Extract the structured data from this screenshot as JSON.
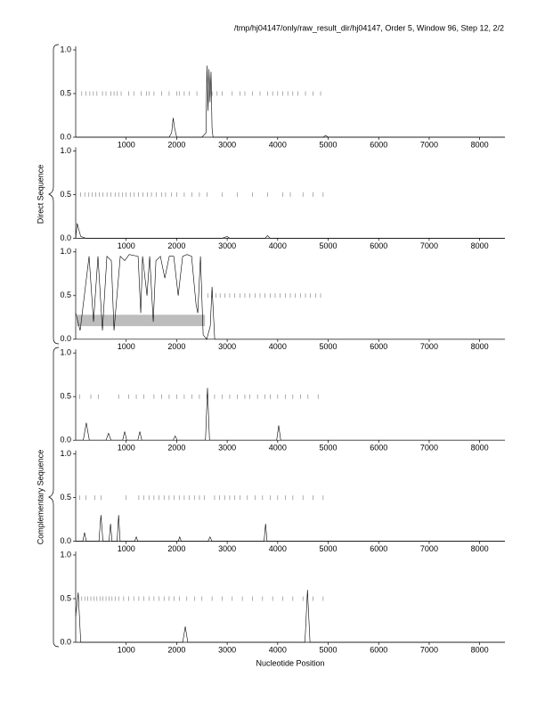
{
  "title": "/tmp/hj04147/only/raw_result_dir/hj04147, Order 5, Window 96, Step 12, 2/2",
  "ylabel_direct": "Direct Sequence",
  "ylabel_complementary": "Complementary Sequence",
  "xlabel": "Nucleotide Position",
  "chart_data": [
    {
      "type": "line",
      "xlim": [
        0,
        8500
      ],
      "ylim": [
        0,
        1
      ],
      "xticks": [
        1000,
        2000,
        3000,
        4000,
        5000,
        6000,
        7000,
        8000
      ],
      "yticks": [
        {
          "value": 0,
          "label": "0.0"
        },
        {
          "value": 0.5,
          "label": "0.5"
        },
        {
          "value": 1,
          "label": "1.0"
        }
      ],
      "x": [
        0,
        1850,
        1900,
        1930,
        1960,
        2000,
        2500,
        2580,
        2600,
        2620,
        2640,
        2660,
        2680,
        2700,
        2720,
        3000,
        4900,
        4950,
        5000,
        8500
      ],
      "values": [
        0,
        0,
        0.05,
        0.22,
        0.1,
        0,
        0,
        0.05,
        0.82,
        0.3,
        0.78,
        0.4,
        0.75,
        0.1,
        0,
        0,
        0,
        0.02,
        0,
        0
      ],
      "marker_level": 0.5,
      "markers": [
        120,
        200,
        280,
        350,
        420,
        530,
        600,
        700,
        760,
        820,
        900,
        1050,
        1150,
        1300,
        1400,
        1450,
        1550,
        1700,
        1850,
        2000,
        2050,
        2150,
        2250,
        2400,
        2700,
        2800,
        2900,
        3100,
        3250,
        3350,
        3500,
        3650,
        3800,
        3900,
        4000,
        4100,
        4200,
        4300,
        4400,
        4550,
        4700,
        4850
      ]
    },
    {
      "type": "line",
      "xlim": [
        0,
        8500
      ],
      "ylim": [
        0,
        1
      ],
      "xticks": [
        1000,
        2000,
        3000,
        4000,
        5000,
        6000,
        7000,
        8000
      ],
      "yticks": [
        {
          "value": 0,
          "label": "0.0"
        },
        {
          "value": 0.5,
          "label": "0.5"
        },
        {
          "value": 1,
          "label": "1.0"
        }
      ],
      "x": [
        0,
        30,
        60,
        100,
        200,
        2900,
        3000,
        3050,
        3100,
        3750,
        3800,
        3850,
        8500
      ],
      "values": [
        0,
        0.17,
        0.1,
        0.02,
        0,
        0,
        0.02,
        0,
        0,
        0,
        0.03,
        0,
        0
      ],
      "marker_level": 0.5,
      "markers": [
        100,
        180,
        260,
        330,
        400,
        470,
        540,
        620,
        700,
        780,
        850,
        930,
        1000,
        1080,
        1160,
        1240,
        1330,
        1420,
        1500,
        1600,
        1700,
        1780,
        1900,
        2000,
        2150,
        2300,
        2450,
        2600,
        2900,
        3200,
        3500,
        3800,
        4100,
        4250,
        4500,
        4700,
        4900
      ]
    },
    {
      "type": "line",
      "xlim": [
        0,
        8500
      ],
      "ylim": [
        0,
        1
      ],
      "xticks": [
        1000,
        2000,
        3000,
        4000,
        5000,
        6000,
        7000,
        8000
      ],
      "yticks": [
        {
          "value": 0,
          "label": "0.0"
        },
        {
          "value": 0.5,
          "label": "0.5"
        },
        {
          "value": 1,
          "label": "1.0"
        }
      ],
      "x": [
        0,
        88,
        265,
        353,
        441,
        530,
        618,
        706,
        759,
        883,
        971,
        1059,
        1236,
        1288,
        1324,
        1412,
        1465,
        1536,
        1589,
        1677,
        1765,
        1853,
        1942,
        2030,
        2118,
        2206,
        2295,
        2383,
        2418,
        2471,
        2524,
        2595,
        2665,
        2700,
        2753,
        8500
      ],
      "values": [
        0.3,
        0.1,
        0.95,
        0.2,
        0.95,
        0.1,
        0.95,
        0.9,
        0.1,
        0.95,
        0.9,
        0.97,
        0.95,
        0.3,
        0.95,
        0.5,
        0.95,
        0.2,
        0.9,
        0.95,
        0.7,
        0.95,
        0.95,
        0.5,
        0.95,
        0.97,
        0.95,
        0.4,
        0.3,
        0.95,
        0.05,
        0,
        0.15,
        0.6,
        0,
        0
      ],
      "regions": [
        {
          "start": 0,
          "end": 2560,
          "low": 0.15,
          "high": 0.28
        }
      ],
      "marker_level": 0.5,
      "markers": [
        2620,
        2700,
        2780,
        2860,
        2950,
        3050,
        3150,
        3250,
        3350,
        3450,
        3550,
        3650,
        3750,
        3850,
        3950,
        4050,
        4150,
        4250,
        4350,
        4450,
        4550,
        4650,
        4750,
        4850
      ]
    },
    {
      "type": "line",
      "xlim": [
        0,
        8500
      ],
      "ylim": [
        0,
        1
      ],
      "xticks": [
        1000,
        2000,
        3000,
        4000,
        5000,
        6000,
        7000,
        8000
      ],
      "yticks": [
        {
          "value": 0,
          "label": "0.0"
        },
        {
          "value": 0.5,
          "label": "0.5"
        },
        {
          "value": 1,
          "label": "1.0"
        }
      ],
      "x": [
        0,
        150,
        210,
        270,
        600,
        650,
        700,
        930,
        970,
        1010,
        1230,
        1270,
        1310,
        1930,
        1970,
        2010,
        2570,
        2610,
        2650,
        3980,
        4020,
        4060,
        8500
      ],
      "values": [
        0,
        0,
        0.2,
        0,
        0,
        0.08,
        0,
        0,
        0.1,
        0,
        0,
        0.1,
        0,
        0,
        0.05,
        0,
        0,
        0.6,
        0,
        0,
        0.17,
        0,
        0
      ],
      "marker_level": 0.5,
      "markers": [
        80,
        300,
        450,
        850,
        1050,
        1200,
        1350,
        1550,
        1700,
        1850,
        2000,
        2150,
        2300,
        2450,
        2600,
        2750,
        2900,
        3050,
        3200,
        3350,
        3450,
        3600,
        3750,
        3850,
        4000,
        4150,
        4300,
        4450,
        4600,
        4800
      ]
    },
    {
      "type": "line",
      "xlim": [
        0,
        8500
      ],
      "ylim": [
        0,
        1
      ],
      "xticks": [
        1000,
        2000,
        3000,
        4000,
        5000,
        6000,
        7000,
        8000
      ],
      "yticks": [
        {
          "value": 0,
          "label": "0.0"
        },
        {
          "value": 0.5,
          "label": "0.5"
        },
        {
          "value": 1,
          "label": "1.0"
        }
      ],
      "x": [
        0,
        140,
        175,
        210,
        460,
        500,
        540,
        660,
        690,
        720,
        820,
        850,
        880,
        1170,
        1200,
        1230,
        2030,
        2060,
        2090,
        2620,
        2660,
        2700,
        3730,
        3760,
        3790,
        8500
      ],
      "values": [
        0,
        0,
        0.1,
        0,
        0,
        0.3,
        0,
        0,
        0.2,
        0,
        0,
        0.3,
        0,
        0,
        0.05,
        0,
        0,
        0.05,
        0,
        0,
        0.05,
        0,
        0,
        0.2,
        0,
        0
      ],
      "marker_level": 0.5,
      "markers": [
        80,
        200,
        380,
        500,
        1000,
        1250,
        1350,
        1450,
        1550,
        1650,
        1750,
        1850,
        1950,
        2050,
        2150,
        2250,
        2350,
        2450,
        2550,
        2750,
        2850,
        2950,
        3050,
        3150,
        3250,
        3400,
        3550,
        3700,
        3850,
        4000,
        4150,
        4300,
        4500,
        4700,
        4900
      ]
    },
    {
      "type": "line",
      "xlim": [
        0,
        8500
      ],
      "ylim": [
        0,
        1
      ],
      "xticks": [
        1000,
        2000,
        3000,
        4000,
        5000,
        6000,
        7000,
        8000
      ],
      "yticks": [
        {
          "value": 0,
          "label": "0.0"
        },
        {
          "value": 0.5,
          "label": "0.5"
        },
        {
          "value": 1,
          "label": "1.0"
        }
      ],
      "x": [
        0,
        50,
        100,
        2120,
        2170,
        2220,
        4540,
        4590,
        4640,
        8500
      ],
      "values": [
        0.3,
        0.57,
        0,
        0,
        0.18,
        0,
        0,
        0.6,
        0,
        0
      ],
      "marker_level": 0.5,
      "markers": [
        120,
        180,
        240,
        300,
        360,
        420,
        480,
        540,
        600,
        660,
        720,
        780,
        850,
        950,
        1050,
        1150,
        1250,
        1350,
        1450,
        1550,
        1650,
        1750,
        1850,
        1950,
        2050,
        2200,
        2350,
        2500,
        2700,
        2900,
        3100,
        3300,
        3500,
        3700,
        3900,
        4100,
        4300,
        4500,
        4700,
        4900
      ]
    }
  ]
}
